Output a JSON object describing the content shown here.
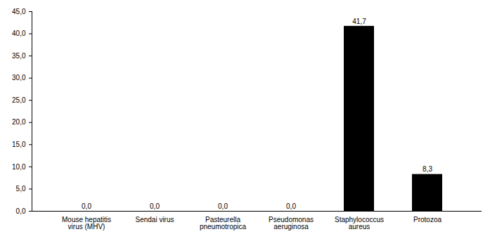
{
  "chart_data": {
    "type": "bar",
    "categories": [
      "Mouse hepatitis virus (MHV)",
      "Sendai virus",
      "Pasteurella pneumotropica",
      "Pseudomonas aeruginosa",
      "Staphylococcus aureus",
      "Protozoa"
    ],
    "values": [
      0,
      0,
      0,
      0,
      41.7,
      8.3
    ],
    "value_labels": [
      "0,0",
      "0,0",
      "0,0",
      "0,0",
      "41,7",
      "8,3"
    ],
    "color": "#000000",
    "ylim": [
      0,
      45
    ],
    "yticks": [
      {
        "value": 0,
        "label": "0,0"
      },
      {
        "value": 5,
        "label": "5,0"
      },
      {
        "value": 10,
        "label": "10,0"
      },
      {
        "value": 15,
        "label": "15,0"
      },
      {
        "value": 20,
        "label": "20,0"
      },
      {
        "value": 25,
        "label": "25,0"
      },
      {
        "value": 30,
        "label": "30,0"
      },
      {
        "value": 35,
        "label": "35,0"
      },
      {
        "value": 40,
        "label": "40,0"
      },
      {
        "value": 45,
        "label": "45,0"
      }
    ],
    "grid": false,
    "data_labels": true
  }
}
